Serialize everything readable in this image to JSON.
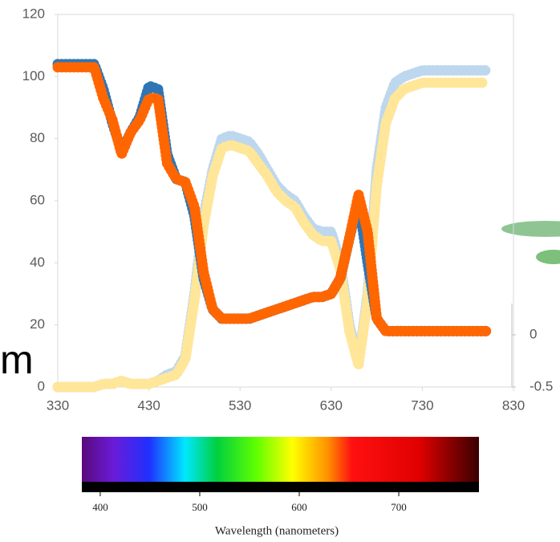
{
  "chart_data": [
    {
      "type": "line",
      "x": [
        330,
        340,
        350,
        360,
        370,
        380,
        390,
        400,
        410,
        420,
        430,
        440,
        450,
        460,
        470,
        480,
        490,
        500,
        510,
        520,
        530,
        540,
        550,
        560,
        570,
        580,
        590,
        600,
        610,
        620,
        630,
        640,
        650,
        660,
        670,
        680,
        690,
        700,
        710,
        720,
        730,
        740,
        750,
        760,
        770,
        780,
        790,
        800
      ],
      "series": [
        {
          "color": "#bdd7ee",
          "values": [
            0,
            0,
            0,
            0,
            0,
            1,
            1,
            2,
            1,
            1,
            1,
            2,
            4,
            5,
            10,
            30,
            55,
            70,
            80,
            81,
            80,
            79,
            75,
            70,
            65,
            62,
            60,
            55,
            51,
            50,
            50,
            40,
            20,
            8,
            30,
            70,
            90,
            98,
            100,
            101,
            102,
            102,
            102,
            102,
            102,
            102,
            102,
            102
          ]
        },
        {
          "color": "#ffe699",
          "values": [
            0,
            0,
            0,
            0,
            0,
            1,
            1,
            2,
            1,
            1,
            1,
            2,
            3,
            4,
            9,
            28,
            52,
            68,
            77,
            78,
            77,
            76,
            72,
            68,
            63,
            60,
            58,
            53,
            49,
            47,
            47,
            38,
            18,
            7,
            28,
            65,
            85,
            93,
            96,
            97,
            98,
            98,
            98,
            98,
            98,
            98,
            98,
            98
          ]
        },
        {
          "color": "#2e75b6",
          "values": [
            104,
            104,
            104,
            104,
            104,
            96,
            85,
            76,
            82,
            87,
            97,
            96,
            75,
            67,
            66,
            55,
            35,
            25,
            22,
            22,
            22,
            22,
            23,
            24,
            25,
            26,
            27,
            28,
            29,
            29,
            30,
            35,
            48,
            60,
            40,
            22,
            18,
            18,
            18,
            18,
            18,
            18,
            18,
            18,
            18,
            18,
            18,
            18
          ]
        },
        {
          "color": "#ff6600",
          "values": [
            103,
            103,
            103,
            103,
            103,
            93,
            86,
            75,
            82,
            86,
            93,
            93,
            72,
            67,
            66,
            58,
            37,
            25,
            22,
            22,
            22,
            22,
            23,
            24,
            25,
            26,
            27,
            28,
            29,
            29,
            30,
            35,
            48,
            62,
            50,
            22,
            18,
            18,
            18,
            18,
            18,
            18,
            18,
            18,
            18,
            18,
            18,
            18
          ]
        }
      ],
      "xlim": [
        330,
        830
      ],
      "xticks": [
        330,
        430,
        530,
        630,
        730,
        830
      ],
      "ylim": [
        0,
        120
      ],
      "yticks": [
        0,
        20,
        40,
        60,
        80,
        100,
        120
      ],
      "y2lim": [
        -0.5,
        0.3
      ],
      "y2ticks": [
        0,
        -0.5
      ],
      "fragment_text": "m"
    },
    {
      "type": "colorbar",
      "xlabel": "Wavelength (nanometers)",
      "xlim": [
        381.5,
        780.6
      ],
      "xticks": [
        400,
        500,
        600,
        700
      ]
    }
  ]
}
